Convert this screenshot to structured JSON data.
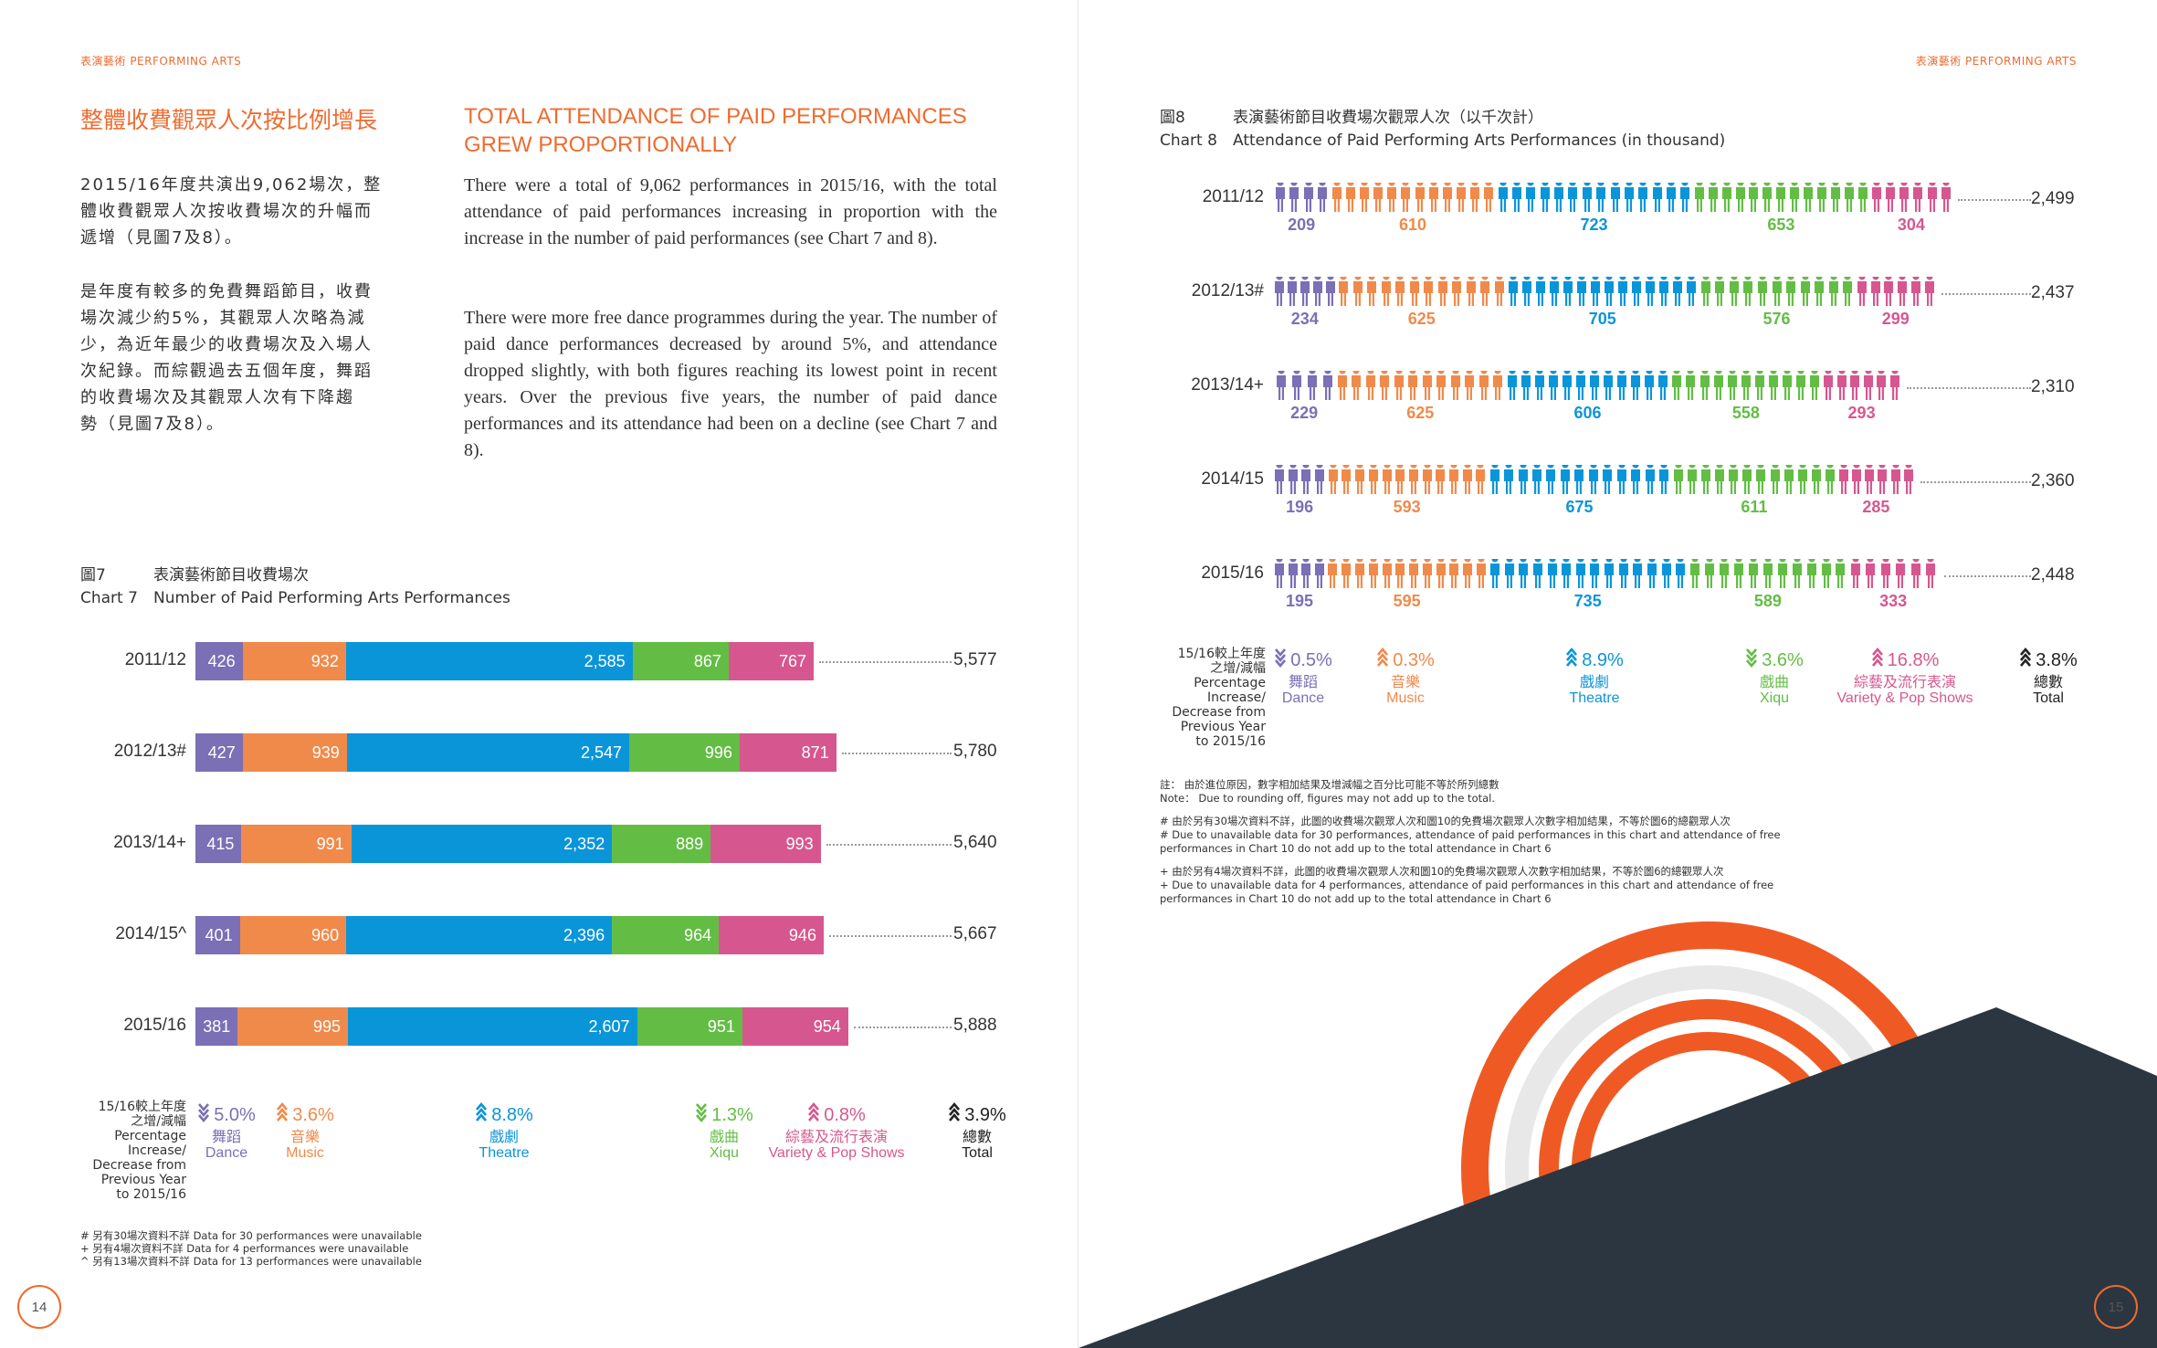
{
  "left_page": {
    "header": "表演藝術 PERFORMING ARTS",
    "zh_title": "整體收費觀眾人次按比例增長",
    "en_title": "TOTAL ATTENDANCE OF PAID PERFORMANCES\nGREW PROPORTIONALLY",
    "zh_para1": "2015/16年度共演出9,062場次，整\n體收費觀眾人次按收費場次的升幅而\n遞增（見圖7及8）。",
    "zh_para2": "是年度有較多的免費舞蹈節目，收費\n場次減少約5%，其觀眾人次略為減\n少，為近年最少的收費場次及入場人\n次紀錄。而綜觀過去五個年度，舞蹈\n的收費場次及其觀眾人次有下降趨\n勢（見圖7及8）。",
    "en_para1": "There were a total of 9,062 performances in 2015/16, with the total attendance of paid performances increasing in proportion with the increase in the number of paid performances (see Chart 7 and 8).",
    "en_para2": "There were more free dance programmes during the year. The number of paid dance performances decreased by around 5%, and attendance dropped slightly, with both figures reaching its lowest point in recent years. Over the previous five years, the number of paid dance performances and its attendance had been on a decline (see Chart 7 and 8).",
    "chart7_zh_label": "圖7",
    "chart7_zh_title": "表演藝術節目收費場次",
    "chart7_en_label": "Chart 7",
    "chart7_en_title": "Number of Paid Performing Arts Performances",
    "pct_label": "15/16較上年度\n之增/減幅\nPercentage\nIncrease/\nDecrease from\nPrevious Year\nto 2015/16",
    "footnote1": "# 另有30場次資料不詳  Data for 30 performances were unavailable",
    "footnote2": "+ 另有4場次資料不詳  Data for 4 performances were unavailable",
    "footnote3": "^ 另有13場次資料不詳 Data for 13 performances were unavailable",
    "page_number": "14"
  },
  "right_page": {
    "header": "表演藝術 PERFORMING ARTS",
    "chart8_zh_label": "圖8",
    "chart8_zh_title": "表演藝術節目收費場次觀眾人次（以千次計）",
    "chart8_en_label": "Chart 8",
    "chart8_en_title": "Attendance of Paid Performing Arts Performances (in thousand)",
    "pct_label": "15/16較上年度\n之增/減幅\nPercentage\nIncrease/\nDecrease from\nPrevious Year\nto 2015/16",
    "note_zh": "註：  由於進位原因，數字相加結果及增減幅之百分比可能不等於所列總數",
    "note_en": "Note：  Due to rounding off, figures may not add up to the total.",
    "note2_zh": "# 由於另有30場次資料不詳，此圖的收費場次觀眾人次和圖10的免費場次觀眾人次數字相加結果，不等於圖6的總觀眾人次",
    "note2_en": "# Due to unavailable data for 30 performances, attendance of paid performances in this chart and attendance of free\n   performances in Chart 10 do not add up to the total attendance in Chart 6",
    "note3_zh": "+ 由於另有4場次資料不詳，此圖的收費場次觀眾人次和圖10的免費場次觀眾人次數字相加結果，不等於圖6的總觀眾人次",
    "note3_en": "+ Due to unavailable data for 4 performances, attendance of paid performances in this chart and attendance of free\n   performances in Chart 10 do not add up to the total attendance in Chart 6",
    "page_number": "15"
  },
  "colors": {
    "accent": "#ef6b2f",
    "dance": "#7b6fb5",
    "music": "#f08a4b",
    "theatre": "#0b95d9",
    "xiqu": "#63bd45",
    "variety": "#d6578f",
    "total": "#222222",
    "dark_shape": "#2b3640"
  },
  "categories": [
    {
      "key": "dance",
      "zh": "舞蹈",
      "en": "Dance"
    },
    {
      "key": "music",
      "zh": "音樂",
      "en": "Music"
    },
    {
      "key": "theatre",
      "zh": "戲劇",
      "en": "Theatre"
    },
    {
      "key": "xiqu",
      "zh": "戲曲",
      "en": "Xiqu"
    },
    {
      "key": "variety",
      "zh": "綜藝及流行表演",
      "en": "Variety & Pop Shows"
    },
    {
      "key": "total",
      "zh": "總數",
      "en": "Total"
    }
  ],
  "chart_data": [
    {
      "type": "bar",
      "title": "Number of Paid Performing Arts Performances",
      "orientation": "horizontal-stacked",
      "categories": [
        "2011/12",
        "2012/13#",
        "2013/14+",
        "2014/15^",
        "2015/16"
      ],
      "series": [
        {
          "name": "Dance",
          "values": [
            426,
            427,
            415,
            401,
            381
          ]
        },
        {
          "name": "Music",
          "values": [
            932,
            939,
            991,
            960,
            995
          ]
        },
        {
          "name": "Theatre",
          "values": [
            2585,
            2547,
            2352,
            2396,
            2607
          ]
        },
        {
          "name": "Xiqu",
          "values": [
            867,
            996,
            889,
            964,
            951
          ]
        },
        {
          "name": "Variety & Pop Shows",
          "values": [
            767,
            871,
            993,
            946,
            954
          ]
        }
      ],
      "totals": [
        "5,577",
        "5,780",
        "5,640",
        "5,667",
        "5,888"
      ],
      "percent_change": [
        {
          "value": "5.0%",
          "direction": "down"
        },
        {
          "value": "3.6%",
          "direction": "up"
        },
        {
          "value": "8.8%",
          "direction": "up"
        },
        {
          "value": "1.3%",
          "direction": "down"
        },
        {
          "value": "0.8%",
          "direction": "up"
        },
        {
          "value": "3.9%",
          "direction": "up"
        }
      ]
    },
    {
      "type": "bar",
      "title": "Attendance of Paid Performing Arts Performances (in thousand)",
      "orientation": "horizontal-pictogram",
      "categories": [
        "2011/12",
        "2012/13#",
        "2013/14+",
        "2014/15",
        "2015/16"
      ],
      "series": [
        {
          "name": "Dance",
          "values": [
            209,
            234,
            229,
            196,
            195
          ]
        },
        {
          "name": "Music",
          "values": [
            610,
            625,
            625,
            593,
            595
          ]
        },
        {
          "name": "Theatre",
          "values": [
            723,
            705,
            606,
            675,
            735
          ]
        },
        {
          "name": "Xiqu",
          "values": [
            653,
            576,
            558,
            611,
            589
          ]
        },
        {
          "name": "Variety & Pop Shows",
          "values": [
            304,
            299,
            293,
            285,
            333
          ]
        }
      ],
      "totals": [
        "2,499",
        "2,437",
        "2,310",
        "2,360",
        "2,448"
      ],
      "percent_change": [
        {
          "value": "0.5%",
          "direction": "down"
        },
        {
          "value": "0.3%",
          "direction": "up"
        },
        {
          "value": "8.9%",
          "direction": "up"
        },
        {
          "value": "3.6%",
          "direction": "down"
        },
        {
          "value": "16.8%",
          "direction": "up"
        },
        {
          "value": "3.8%",
          "direction": "up"
        }
      ]
    }
  ]
}
